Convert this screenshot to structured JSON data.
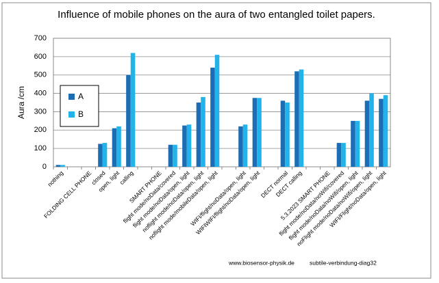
{
  "chart_data": {
    "type": "bar",
    "title": "Influence of mobile phones on the aura of two entangled toilet papers.",
    "y_label": "Aura /cm",
    "categories": [
      "nothing",
      null,
      "FOLDING CELL PHONE",
      "closed",
      "open, light",
      "calling",
      null,
      "SMART PHONE",
      "flight mode/noData/covered",
      "flight mode/noData/open, light",
      "noflight mode/noData/open, light",
      "noflight mode/mobileData/open, light",
      null,
      "WIFI/flight/noData/open, light",
      "WIFIWIFI/flight/noData/open, light",
      null,
      "DECT normal",
      "DECT calling",
      null,
      "5.3.2023 SMART PHONE",
      "flight mode/noData/noWifi/covered",
      "flight mode/noData/noWifi/open, light",
      "noFlight mode/noData/noWifi/open, light",
      "WIFI/Flight/noData/open, light"
    ],
    "series": [
      {
        "name": "A",
        "color": "#1c6db3",
        "values": [
          10,
          null,
          null,
          125,
          210,
          500,
          null,
          null,
          120,
          225,
          350,
          540,
          null,
          220,
          375,
          null,
          360,
          520,
          null,
          null,
          130,
          250,
          360,
          370
        ]
      },
      {
        "name": "B",
        "color": "#21b3ea",
        "values": [
          10,
          null,
          null,
          130,
          220,
          620,
          null,
          null,
          120,
          230,
          380,
          610,
          null,
          230,
          375,
          null,
          350,
          530,
          null,
          null,
          130,
          250,
          400,
          390
        ]
      }
    ],
    "ylim": [
      0,
      700
    ],
    "yticks": [
      0,
      100,
      200,
      300,
      400,
      500,
      600,
      700
    ],
    "grid": true,
    "footer": [
      "www.biosensor-physik.de",
      "subtile-verbindung-diag32"
    ]
  }
}
